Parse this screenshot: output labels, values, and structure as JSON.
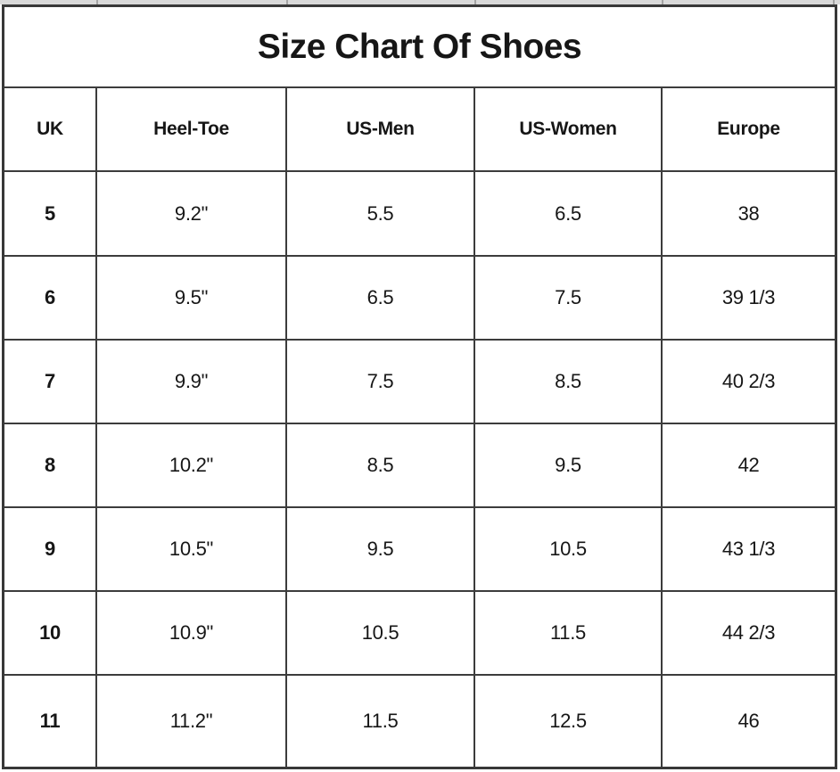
{
  "title": "Size Chart Of Shoes",
  "chart_data": {
    "type": "table",
    "title": "Size Chart Of Shoes",
    "columns": [
      "UK",
      "Heel-Toe",
      "US-Men",
      "US-Women",
      "Europe"
    ],
    "rows": [
      [
        "5",
        "9.2\"",
        "5.5",
        "6.5",
        "38"
      ],
      [
        "6",
        "9.5\"",
        "6.5",
        "7.5",
        "39 1/3"
      ],
      [
        "7",
        "9.9\"",
        "7.5",
        "8.5",
        "40 2/3"
      ],
      [
        "8",
        "10.2\"",
        "8.5",
        "9.5",
        "42"
      ],
      [
        "9",
        "10.5\"",
        "9.5",
        "10.5",
        "43 1/3"
      ],
      [
        "10",
        "10.9\"",
        "10.5",
        "11.5",
        "44 2/3"
      ],
      [
        "11",
        "11.2\"",
        "11.5",
        "12.5",
        "46"
      ]
    ],
    "layout": {
      "grid": "on",
      "header_style": "bold",
      "first_column_style": "bold"
    }
  },
  "colors": {
    "background": "#ffffff",
    "text": "#161616",
    "border": "#3c3c3c",
    "gridline_strip_background": "#d9d9d9",
    "gridline_strip_tick": "#a3a3a3"
  }
}
